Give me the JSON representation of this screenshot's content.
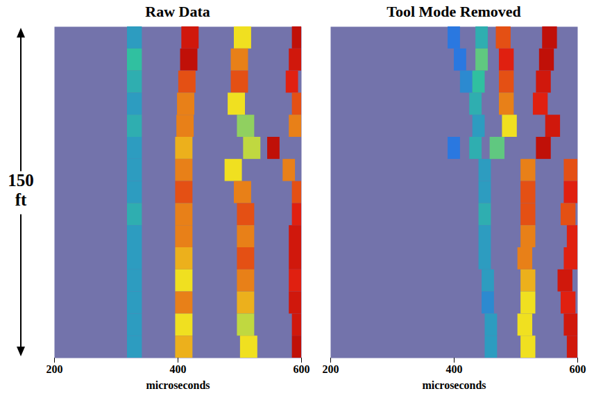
{
  "chart_data": [
    {
      "type": "heatmap",
      "title": "Raw Data",
      "xlabel": "microseconds",
      "ylabel": "150 ft",
      "xlim": [
        200,
        600
      ],
      "xticks": [
        200,
        400,
        600
      ],
      "ylim": [
        0,
        150
      ],
      "tick_labels": "x",
      "zlim": [
        0,
        1
      ],
      "depth": [
        0,
        10,
        20,
        30,
        40,
        50,
        60,
        70,
        80,
        90,
        100,
        110,
        120,
        130,
        140
      ],
      "bands": [
        {
          "half_width": 12,
          "t": [
            330,
            330,
            330,
            330,
            330,
            330,
            330,
            330,
            330,
            330,
            330,
            330,
            330,
            330,
            330
          ],
          "amp": [
            0.3,
            0.4,
            0.35,
            0.3,
            0.35,
            0.3,
            0.3,
            0.3,
            0.35,
            0.3,
            0.3,
            0.3,
            0.3,
            0.3,
            0.3
          ]
        },
        {
          "half_width": 14,
          "t": [
            420,
            418,
            415,
            413,
            412,
            410,
            410,
            410,
            410,
            410,
            410,
            410,
            410,
            410,
            410
          ],
          "amp": [
            0.85,
            0.9,
            0.75,
            0.7,
            0.7,
            0.65,
            0.7,
            0.75,
            0.7,
            0.7,
            0.65,
            0.6,
            0.7,
            0.6,
            0.65
          ]
        },
        {
          "half_width": 14,
          "t": [
            505,
            500,
            500,
            495,
            510,
            520,
            490,
            505,
            510,
            510,
            510,
            510,
            510,
            510,
            515
          ],
          "amp": [
            0.6,
            0.7,
            0.75,
            0.6,
            0.5,
            0.55,
            0.6,
            0.7,
            0.75,
            0.7,
            0.75,
            0.7,
            0.65,
            0.55,
            0.6
          ]
        },
        {
          "half_width": 10,
          "t": [
            595,
            590,
            585,
            595,
            590,
            555,
            580,
            595,
            595,
            590,
            590,
            590,
            590,
            595,
            595
          ],
          "amp": [
            0.9,
            0.85,
            0.8,
            0.75,
            0.7,
            0.9,
            0.7,
            0.75,
            0.8,
            0.85,
            0.85,
            0.8,
            0.85,
            0.85,
            0.9
          ]
        }
      ]
    },
    {
      "type": "heatmap",
      "title": "Tool Mode Removed",
      "xlabel": "microseconds",
      "xlim": [
        200,
        600
      ],
      "xticks": [
        200,
        400,
        600
      ],
      "ylim": [
        0,
        150
      ],
      "tick_labels": "x",
      "zlim": [
        0,
        1
      ],
      "depth": [
        0,
        10,
        20,
        30,
        40,
        50,
        60,
        70,
        80,
        90,
        100,
        110,
        120,
        130,
        140
      ],
      "bands": [
        {
          "half_width": 10,
          "t": [
            400,
            410,
            420,
            null,
            null,
            400,
            null,
            null,
            null,
            null,
            null,
            null,
            null,
            null,
            null
          ],
          "amp": [
            0.2,
            0.2,
            0.25,
            null,
            null,
            0.2,
            null,
            null,
            null,
            null,
            null,
            null,
            null,
            null,
            null
          ]
        },
        {
          "half_width": 10,
          "t": [
            445,
            445,
            440,
            435,
            440,
            435,
            450,
            450,
            450,
            450,
            450,
            455,
            455,
            460,
            460
          ],
          "amp": [
            0.35,
            0.45,
            0.4,
            0.35,
            0.3,
            0.35,
            0.3,
            0.3,
            0.35,
            0.3,
            0.3,
            0.3,
            0.25,
            0.3,
            0.3
          ]
        },
        {
          "half_width": 12,
          "t": [
            480,
            485,
            485,
            485,
            490,
            470,
            520,
            520,
            520,
            520,
            515,
            520,
            520,
            515,
            520
          ],
          "amp": [
            0.75,
            0.8,
            0.75,
            0.7,
            0.6,
            0.45,
            0.7,
            0.75,
            0.75,
            0.7,
            0.7,
            0.65,
            0.6,
            0.6,
            0.6
          ]
        },
        {
          "half_width": 12,
          "t": [
            555,
            550,
            545,
            540,
            560,
            545,
            590,
            590,
            585,
            595,
            590,
            580,
            585,
            590,
            595
          ],
          "amp": [
            0.9,
            0.9,
            0.85,
            0.8,
            0.85,
            0.9,
            0.75,
            0.8,
            0.75,
            0.8,
            0.8,
            0.85,
            0.8,
            0.85,
            0.85
          ]
        }
      ]
    }
  ]
}
